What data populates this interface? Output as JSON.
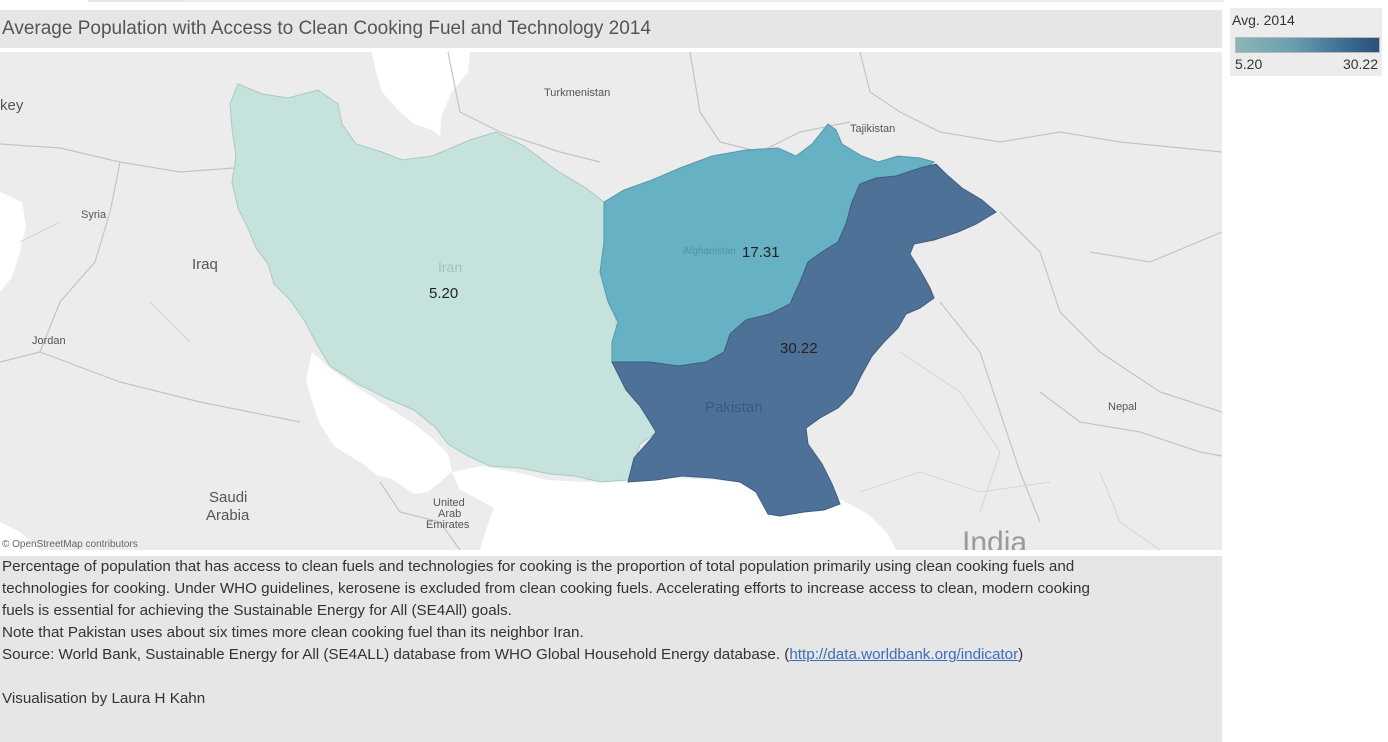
{
  "title": "Average Population with Access to Clean Cooking Fuel and Technology 2014",
  "legend": {
    "title": "Avg. 2014",
    "min_label": "5.20",
    "max_label": "30.22",
    "colors": [
      "#8eb5b7",
      "#2a5076"
    ]
  },
  "map": {
    "attribution": "© OpenStreetMap contributors",
    "background_labels": {
      "turkey": "key",
      "turkmenistan": "Turkmenistan",
      "tajikistan": "Tajikistan",
      "syria": "Syria",
      "iraq": "Iraq",
      "jordan": "Jordan",
      "saudi_line1": "Saudi",
      "saudi_line2": "Arabia",
      "uae_line1": "United",
      "uae_line2": "Arab",
      "uae_line3": "Emirates",
      "nepal": "Nepal",
      "india": "India"
    },
    "countries": [
      {
        "name": "Iran",
        "value_label": "5.20",
        "value": 5.2,
        "color": "#c5e3dc"
      },
      {
        "name": "Afghanistan",
        "value_label": "17.31",
        "value": 17.31,
        "color": "#66b1c4"
      },
      {
        "name": "Pakistan",
        "value_label": "30.22",
        "value": 30.22,
        "color": "#4e7197"
      }
    ]
  },
  "description": {
    "line1": "Percentage of population that has access to clean fuels and technologies for cooking is the proportion of total population primarily using clean cooking fuels and",
    "line2": "technologies for cooking. Under WHO guidelines, kerosene is excluded from clean cooking fuels. Accelerating efforts to increase access to clean, modern cooking",
    "line3": "fuels is essential for achieving the Sustainable Energy for All (SE4All) goals.",
    "line4": "Note that Pakistan uses about six times more clean cooking fuel than its neighbor Iran.",
    "source_prefix": "Source: World Bank, Sustainable Energy for All (SE4ALL) database from WHO Global Household Energy database. (",
    "source_link": "http://data.worldbank.org/indicator",
    "source_suffix": ")",
    "credit": "Visualisation by Laura H Kahn"
  }
}
